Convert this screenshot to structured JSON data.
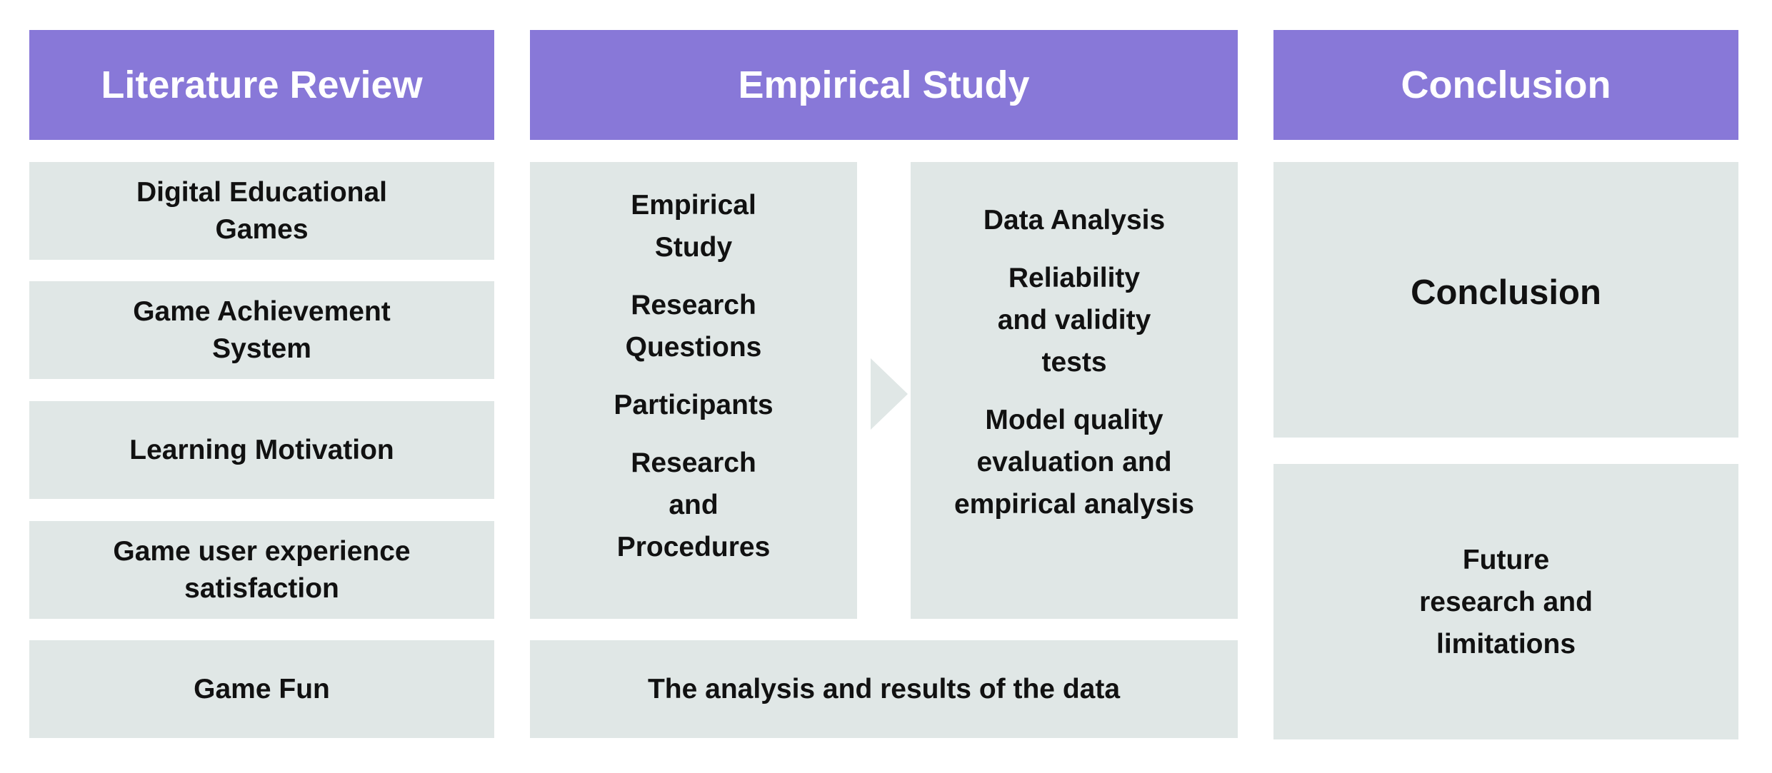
{
  "headers": {
    "literature": "Literature Review",
    "empirical": "Empirical Study",
    "conclusion": "Conclusion"
  },
  "literature_items": [
    "Digital Educational Games",
    "Game Achievement System",
    "Learning Motivation",
    "Game user experience satisfaction",
    "Game Fun"
  ],
  "empirical_left": [
    "Empirical Study",
    "Research Questions",
    "Participants",
    "Research and Procedures"
  ],
  "empirical_right": [
    "Data Analysis",
    "Reliability and validity tests",
    "Model quality evaluation and empirical analysis"
  ],
  "empirical_bottom": "The analysis and results of the data",
  "conclusion_items": [
    "Conclusion",
    "Future research and limitations"
  ],
  "colors": {
    "header_bg": "#8878d8",
    "box_bg": "#e0e7e6",
    "text": "#111111"
  }
}
